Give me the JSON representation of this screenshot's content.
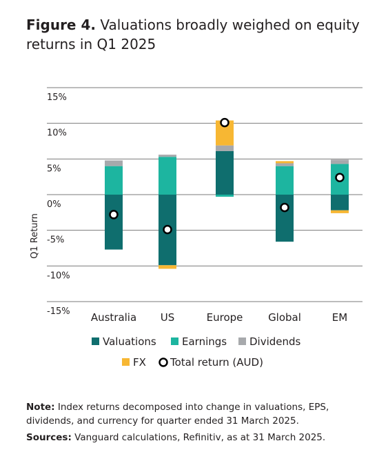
{
  "figure": {
    "label": "Figure 4.",
    "title": "Valuations broadly weighed on equity returns in Q1 2025"
  },
  "chart_data": {
    "type": "bar",
    "stacked": true,
    "categories": [
      "Australia",
      "US",
      "Europe",
      "Global",
      "EM"
    ],
    "ylabel": "Q1 Return",
    "ylim": [
      -15,
      15
    ],
    "yticks": [
      15,
      10,
      5,
      0,
      -5,
      -10,
      -15
    ],
    "ytick_labels": [
      "15%",
      "10%",
      "5%",
      "0%",
      "-5%",
      "-10%",
      "-15%"
    ],
    "grid": true,
    "legend_position": "bottom",
    "series": [
      {
        "name": "Valuations",
        "color": "#0f6e6e",
        "values": [
          -7.7,
          -9.9,
          6.1,
          -6.6,
          -2.2
        ]
      },
      {
        "name": "Earnings",
        "color": "#1db5a0",
        "values": [
          4.0,
          5.3,
          -0.3,
          4.0,
          4.3
        ]
      },
      {
        "name": "Dividends",
        "color": "#a7a9ac",
        "values": [
          0.8,
          0.3,
          0.8,
          0.4,
          0.6
        ]
      },
      {
        "name": "FX",
        "color": "#f7b733",
        "values": [
          0.0,
          -0.5,
          3.5,
          0.3,
          -0.4
        ]
      }
    ],
    "total_return": {
      "name": "Total return (AUD)",
      "values": [
        -2.8,
        -4.9,
        10.1,
        -1.8,
        2.4
      ]
    }
  },
  "notes": {
    "note_label": "Note:",
    "note_text": " Index returns decomposed into change in valuations, EPS, dividends, and currency for quarter ended 31 March 2025.",
    "sources_label": "Sources:",
    "sources_text": " Vanguard calculations, Refinitiv, as at 31 March 2025."
  }
}
